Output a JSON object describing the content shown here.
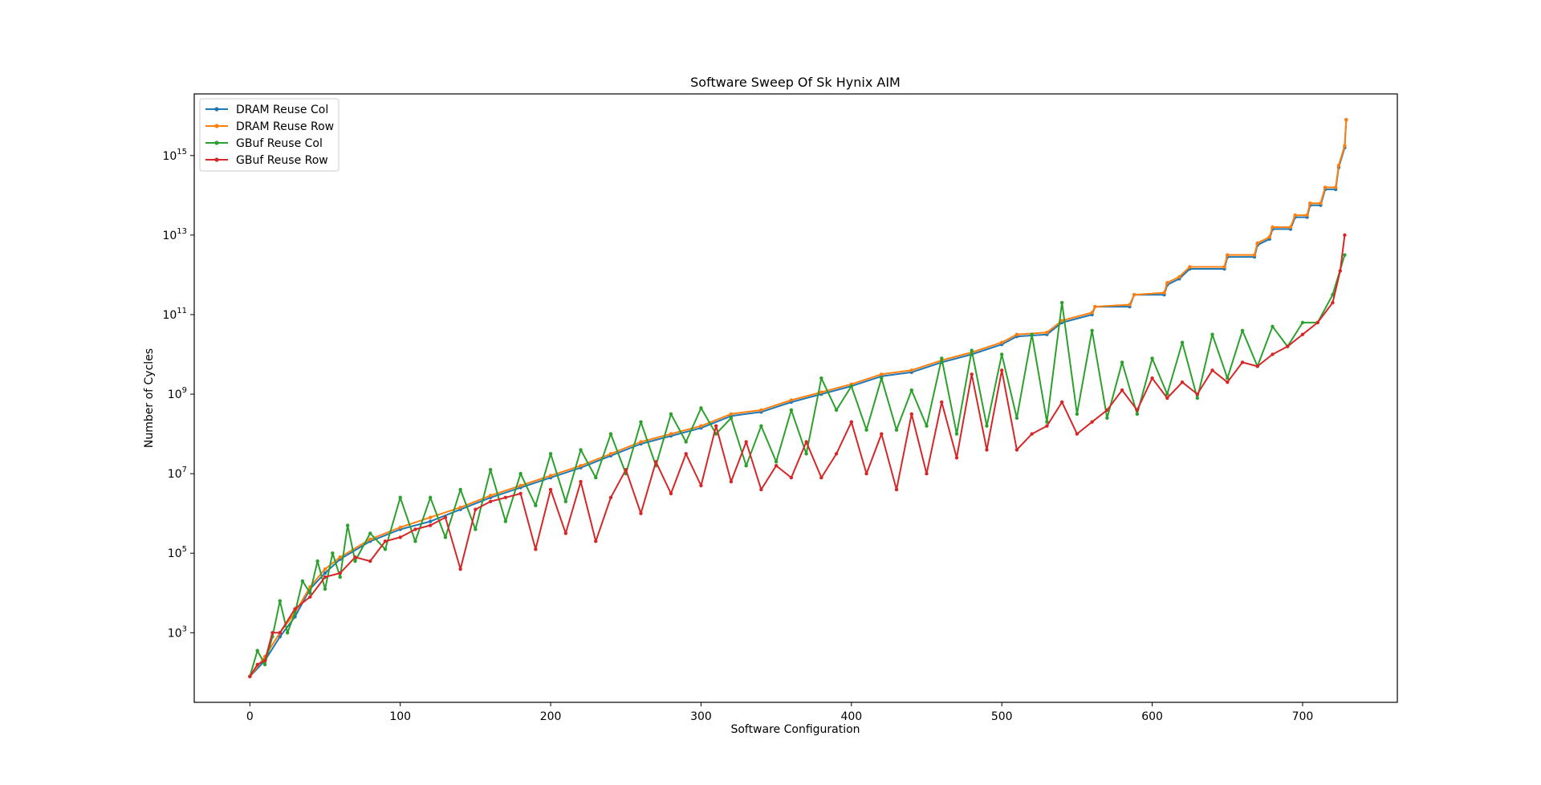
{
  "chart_data": {
    "type": "line",
    "title": "Software Sweep Of Sk Hynix AIM",
    "xlabel": "Software Configuration",
    "ylabel": "Number of Cycles",
    "xlim": [
      -37,
      763
    ],
    "ylim_log10": [
      1.25,
      16.55
    ],
    "y_scale": "log",
    "grid": false,
    "legend_position": "top-left",
    "x_ticks": [
      0,
      100,
      200,
      300,
      400,
      500,
      600,
      700
    ],
    "y_ticks": [
      {
        "base": "10",
        "exp": "3",
        "log10": 3
      },
      {
        "base": "10",
        "exp": "5",
        "log10": 5
      },
      {
        "base": "10",
        "exp": "7",
        "log10": 7
      },
      {
        "base": "10",
        "exp": "9",
        "log10": 9
      },
      {
        "base": "10",
        "exp": "11",
        "log10": 11
      },
      {
        "base": "10",
        "exp": "13",
        "log10": 13
      },
      {
        "base": "10",
        "exp": "15",
        "log10": 15
      }
    ],
    "series": [
      {
        "name": "DRAM Reuse Col",
        "color": "#1f77b4",
        "marker": "dot",
        "points_log10": [
          [
            0,
            1.9
          ],
          [
            10,
            2.3
          ],
          [
            20,
            2.9
          ],
          [
            30,
            3.4
          ],
          [
            40,
            4.1
          ],
          [
            50,
            4.5
          ],
          [
            60,
            4.85
          ],
          [
            80,
            5.3
          ],
          [
            100,
            5.6
          ],
          [
            120,
            5.8
          ],
          [
            140,
            6.1
          ],
          [
            160,
            6.4
          ],
          [
            180,
            6.65
          ],
          [
            200,
            6.9
          ],
          [
            220,
            7.15
          ],
          [
            240,
            7.45
          ],
          [
            260,
            7.75
          ],
          [
            280,
            7.95
          ],
          [
            300,
            8.15
          ],
          [
            320,
            8.45
          ],
          [
            340,
            8.55
          ],
          [
            360,
            8.8
          ],
          [
            380,
            9.0
          ],
          [
            400,
            9.2
          ],
          [
            420,
            9.45
          ],
          [
            440,
            9.55
          ],
          [
            460,
            9.8
          ],
          [
            480,
            10.0
          ],
          [
            500,
            10.25
          ],
          [
            510,
            10.45
          ],
          [
            530,
            10.5
          ],
          [
            540,
            10.8
          ],
          [
            560,
            11.0
          ],
          [
            562,
            11.2
          ],
          [
            585,
            11.2
          ],
          [
            588,
            11.5
          ],
          [
            608,
            11.5
          ],
          [
            610,
            11.75
          ],
          [
            618,
            11.9
          ],
          [
            625,
            12.15
          ],
          [
            648,
            12.15
          ],
          [
            650,
            12.45
          ],
          [
            668,
            12.45
          ],
          [
            670,
            12.75
          ],
          [
            678,
            12.9
          ],
          [
            680,
            13.15
          ],
          [
            692,
            13.15
          ],
          [
            695,
            13.45
          ],
          [
            703,
            13.45
          ],
          [
            705,
            13.75
          ],
          [
            712,
            13.75
          ],
          [
            715,
            14.15
          ],
          [
            722,
            14.15
          ],
          [
            724,
            14.7
          ],
          [
            728,
            15.2
          ],
          [
            729,
            15.9
          ]
        ]
      },
      {
        "name": "DRAM Reuse Row",
        "color": "#ff7f0e",
        "marker": "dot",
        "points_log10": [
          [
            0,
            1.9
          ],
          [
            10,
            2.4
          ],
          [
            20,
            3.0
          ],
          [
            30,
            3.5
          ],
          [
            40,
            4.15
          ],
          [
            50,
            4.6
          ],
          [
            60,
            4.9
          ],
          [
            80,
            5.35
          ],
          [
            100,
            5.65
          ],
          [
            120,
            5.9
          ],
          [
            140,
            6.15
          ],
          [
            160,
            6.45
          ],
          [
            180,
            6.7
          ],
          [
            200,
            6.95
          ],
          [
            220,
            7.2
          ],
          [
            240,
            7.5
          ],
          [
            260,
            7.8
          ],
          [
            280,
            8.0
          ],
          [
            300,
            8.2
          ],
          [
            320,
            8.5
          ],
          [
            340,
            8.6
          ],
          [
            360,
            8.85
          ],
          [
            380,
            9.05
          ],
          [
            400,
            9.25
          ],
          [
            420,
            9.5
          ],
          [
            440,
            9.6
          ],
          [
            460,
            9.85
          ],
          [
            480,
            10.05
          ],
          [
            500,
            10.3
          ],
          [
            510,
            10.5
          ],
          [
            530,
            10.55
          ],
          [
            540,
            10.85
          ],
          [
            560,
            11.05
          ],
          [
            562,
            11.2
          ],
          [
            585,
            11.25
          ],
          [
            588,
            11.5
          ],
          [
            608,
            11.55
          ],
          [
            610,
            11.8
          ],
          [
            618,
            11.95
          ],
          [
            625,
            12.2
          ],
          [
            648,
            12.2
          ],
          [
            650,
            12.5
          ],
          [
            668,
            12.5
          ],
          [
            670,
            12.8
          ],
          [
            678,
            12.95
          ],
          [
            680,
            13.2
          ],
          [
            692,
            13.2
          ],
          [
            695,
            13.5
          ],
          [
            703,
            13.5
          ],
          [
            705,
            13.8
          ],
          [
            712,
            13.8
          ],
          [
            715,
            14.2
          ],
          [
            722,
            14.2
          ],
          [
            724,
            14.75
          ],
          [
            728,
            15.25
          ],
          [
            729,
            15.9
          ]
        ]
      },
      {
        "name": "GBuf Reuse Col",
        "color": "#2ca02c",
        "marker": "dot",
        "points_log10": [
          [
            0,
            1.9
          ],
          [
            5,
            2.55
          ],
          [
            10,
            2.2
          ],
          [
            15,
            2.9
          ],
          [
            20,
            3.8
          ],
          [
            25,
            3.0
          ],
          [
            30,
            3.5
          ],
          [
            35,
            4.3
          ],
          [
            40,
            4.0
          ],
          [
            45,
            4.8
          ],
          [
            50,
            4.1
          ],
          [
            55,
            5.0
          ],
          [
            60,
            4.4
          ],
          [
            65,
            5.7
          ],
          [
            70,
            4.8
          ],
          [
            80,
            5.5
          ],
          [
            90,
            5.1
          ],
          [
            100,
            6.4
          ],
          [
            110,
            5.3
          ],
          [
            120,
            6.4
          ],
          [
            130,
            5.4
          ],
          [
            140,
            6.6
          ],
          [
            150,
            5.6
          ],
          [
            160,
            7.1
          ],
          [
            170,
            5.8
          ],
          [
            180,
            7.0
          ],
          [
            190,
            6.2
          ],
          [
            200,
            7.5
          ],
          [
            210,
            6.3
          ],
          [
            220,
            7.6
          ],
          [
            230,
            6.9
          ],
          [
            240,
            8.0
          ],
          [
            250,
            7.0
          ],
          [
            260,
            8.3
          ],
          [
            270,
            7.2
          ],
          [
            280,
            8.5
          ],
          [
            290,
            7.8
          ],
          [
            300,
            8.65
          ],
          [
            310,
            8.0
          ],
          [
            320,
            8.4
          ],
          [
            330,
            7.2
          ],
          [
            340,
            8.2
          ],
          [
            350,
            7.3
          ],
          [
            360,
            8.6
          ],
          [
            370,
            7.5
          ],
          [
            380,
            9.4
          ],
          [
            390,
            8.6
          ],
          [
            400,
            9.2
          ],
          [
            410,
            8.1
          ],
          [
            420,
            9.4
          ],
          [
            430,
            8.1
          ],
          [
            440,
            9.1
          ],
          [
            450,
            8.2
          ],
          [
            460,
            9.9
          ],
          [
            470,
            8.0
          ],
          [
            480,
            10.1
          ],
          [
            490,
            8.2
          ],
          [
            500,
            10.0
          ],
          [
            510,
            8.4
          ],
          [
            520,
            10.5
          ],
          [
            530,
            8.3
          ],
          [
            540,
            11.3
          ],
          [
            550,
            8.5
          ],
          [
            560,
            10.6
          ],
          [
            570,
            8.4
          ],
          [
            580,
            9.8
          ],
          [
            590,
            8.5
          ],
          [
            600,
            9.9
          ],
          [
            610,
            9.0
          ],
          [
            620,
            10.3
          ],
          [
            630,
            8.9
          ],
          [
            640,
            10.5
          ],
          [
            650,
            9.4
          ],
          [
            660,
            10.6
          ],
          [
            670,
            9.7
          ],
          [
            680,
            10.7
          ],
          [
            690,
            10.2
          ],
          [
            700,
            10.8
          ],
          [
            710,
            10.8
          ],
          [
            720,
            11.5
          ],
          [
            728,
            12.5
          ]
        ]
      },
      {
        "name": "GBuf Reuse Row",
        "color": "#d62728",
        "marker": "dot",
        "points_log10": [
          [
            0,
            1.9
          ],
          [
            5,
            2.2
          ],
          [
            10,
            2.3
          ],
          [
            15,
            3.0
          ],
          [
            20,
            3.0
          ],
          [
            30,
            3.6
          ],
          [
            40,
            3.9
          ],
          [
            50,
            4.4
          ],
          [
            60,
            4.5
          ],
          [
            70,
            4.9
          ],
          [
            80,
            4.8
          ],
          [
            90,
            5.3
          ],
          [
            100,
            5.4
          ],
          [
            110,
            5.6
          ],
          [
            120,
            5.7
          ],
          [
            130,
            5.9
          ],
          [
            140,
            4.6
          ],
          [
            150,
            6.1
          ],
          [
            160,
            6.3
          ],
          [
            170,
            6.4
          ],
          [
            180,
            6.5
          ],
          [
            190,
            5.1
          ],
          [
            200,
            6.6
          ],
          [
            210,
            5.5
          ],
          [
            220,
            6.8
          ],
          [
            230,
            5.3
          ],
          [
            240,
            6.4
          ],
          [
            250,
            7.1
          ],
          [
            260,
            6.0
          ],
          [
            270,
            7.3
          ],
          [
            280,
            6.5
          ],
          [
            290,
            7.5
          ],
          [
            300,
            6.7
          ],
          [
            310,
            8.2
          ],
          [
            320,
            6.8
          ],
          [
            330,
            7.8
          ],
          [
            340,
            6.6
          ],
          [
            350,
            7.2
          ],
          [
            360,
            6.9
          ],
          [
            370,
            7.8
          ],
          [
            380,
            6.9
          ],
          [
            390,
            7.5
          ],
          [
            400,
            8.3
          ],
          [
            410,
            7.0
          ],
          [
            420,
            8.0
          ],
          [
            430,
            6.6
          ],
          [
            440,
            8.5
          ],
          [
            450,
            7.0
          ],
          [
            460,
            8.8
          ],
          [
            470,
            7.4
          ],
          [
            480,
            9.5
          ],
          [
            490,
            7.6
          ],
          [
            500,
            9.6
          ],
          [
            510,
            7.6
          ],
          [
            520,
            8.0
          ],
          [
            530,
            8.2
          ],
          [
            540,
            8.8
          ],
          [
            550,
            8.0
          ],
          [
            560,
            8.3
          ],
          [
            570,
            8.6
          ],
          [
            580,
            9.1
          ],
          [
            590,
            8.6
          ],
          [
            600,
            9.4
          ],
          [
            610,
            8.9
          ],
          [
            620,
            9.3
          ],
          [
            630,
            9.0
          ],
          [
            640,
            9.6
          ],
          [
            650,
            9.3
          ],
          [
            660,
            9.8
          ],
          [
            670,
            9.7
          ],
          [
            680,
            10.0
          ],
          [
            690,
            10.2
          ],
          [
            700,
            10.5
          ],
          [
            710,
            10.8
          ],
          [
            720,
            11.3
          ],
          [
            725,
            12.1
          ],
          [
            728,
            13.0
          ]
        ]
      }
    ]
  }
}
